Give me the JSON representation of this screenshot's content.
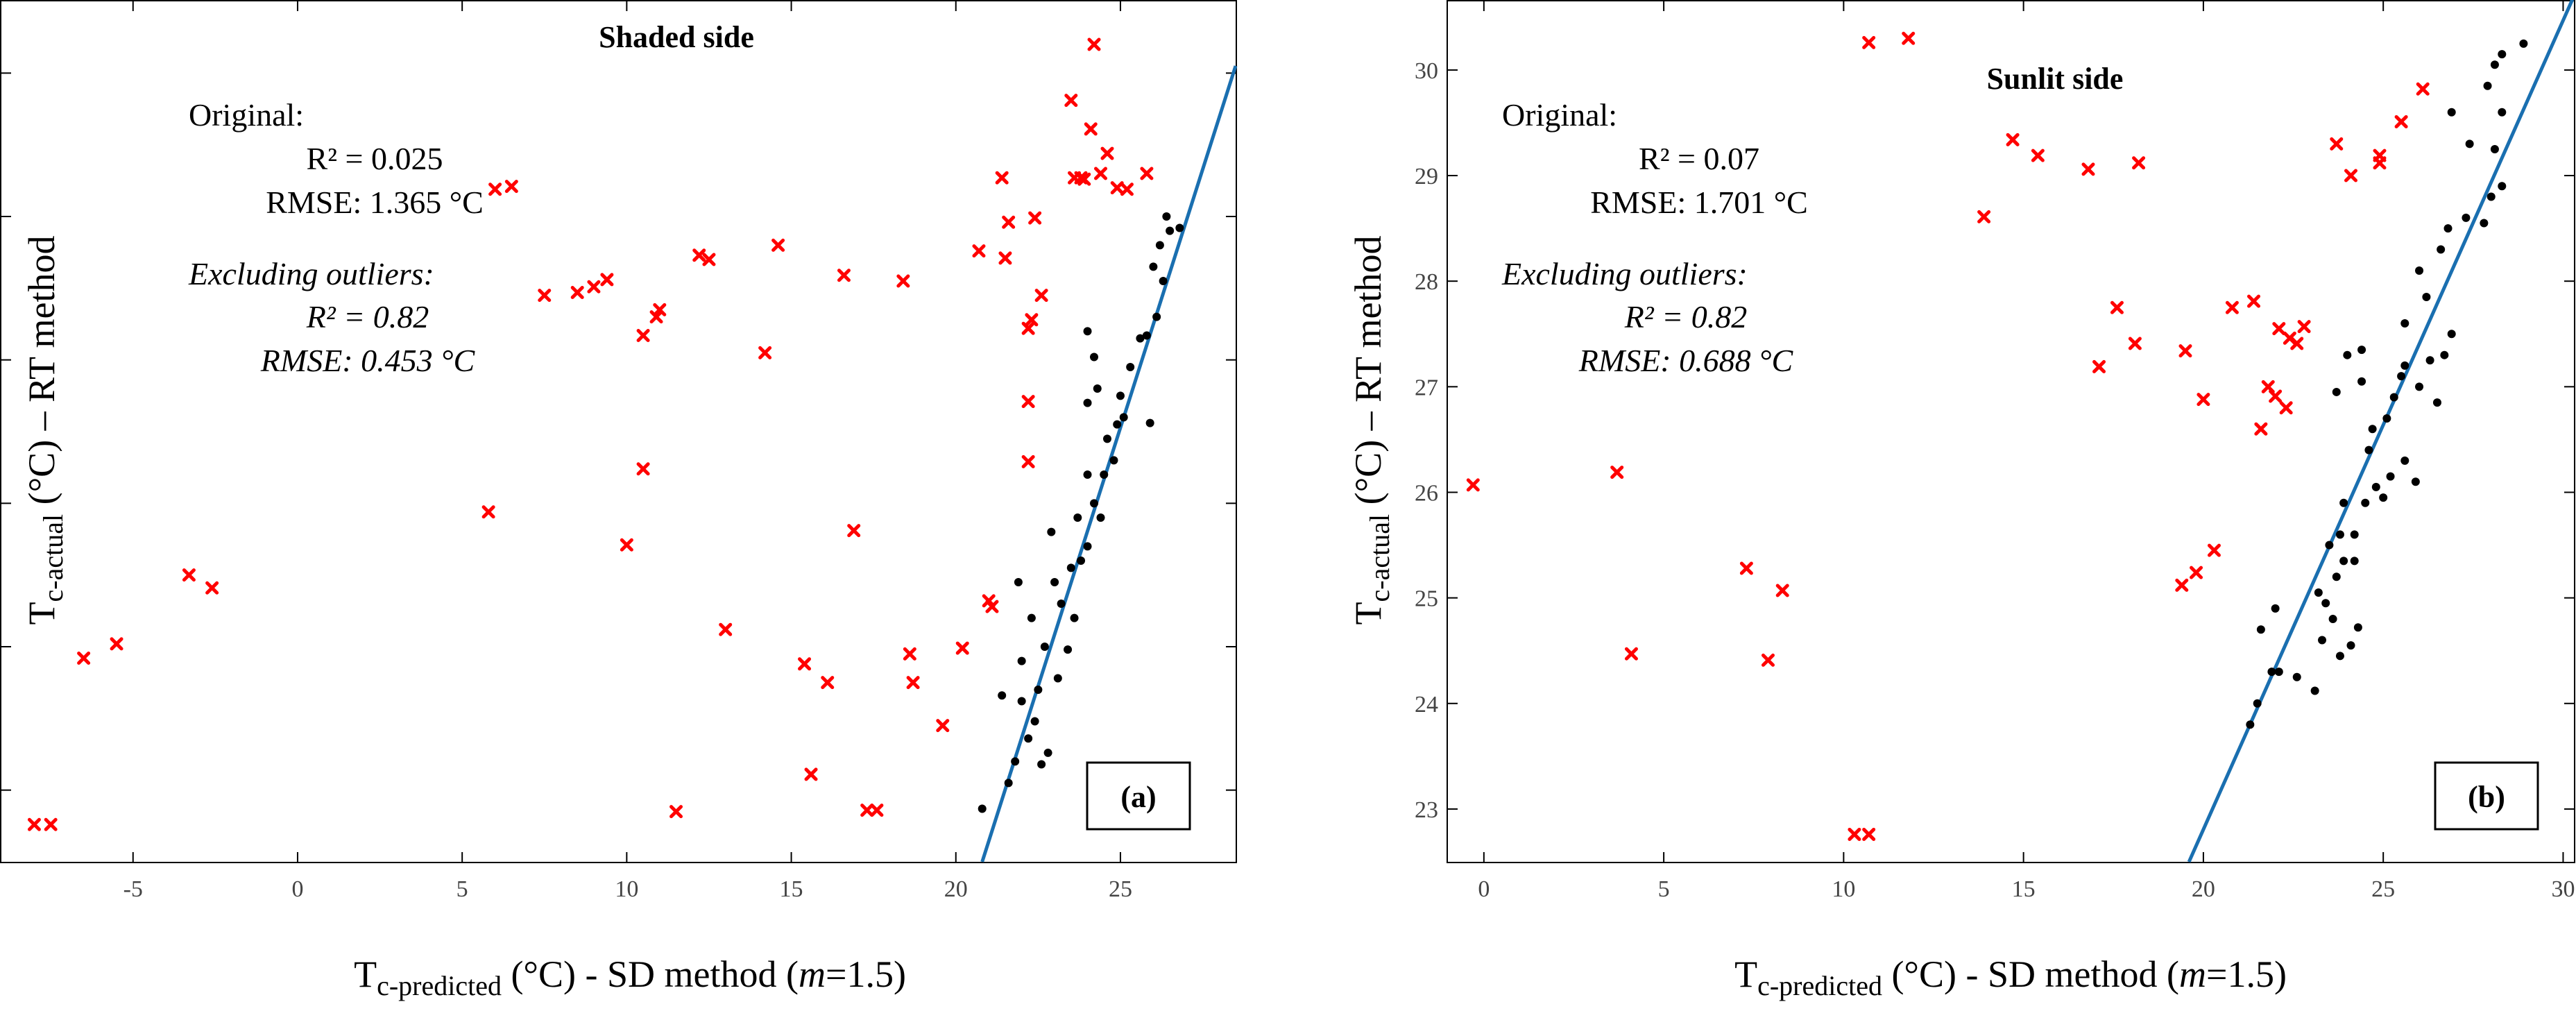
{
  "chart_data": [
    {
      "type": "scatter",
      "title": "Shaded side",
      "panel_tag": "(a)",
      "xlabel": {
        "main": "T",
        "sub": "c-predicted",
        "rest": " (°C) - SD method (",
        "m": "m",
        "tail": "=1.5)"
      },
      "ylabel": {
        "main": "T",
        "sub": "c-actual",
        "rest": " (°C) – RT method"
      },
      "xlim": [
        -9,
        28.5
      ],
      "ylim": [
        22.5,
        28.5
      ],
      "xticks": [
        -5,
        0,
        5,
        10,
        15,
        20,
        25
      ],
      "yticks": [
        23,
        24,
        25,
        26,
        27,
        28
      ],
      "stats": {
        "original_label": "Original:",
        "original_r2": "R² = 0.025",
        "original_rmse": "RMSE: 1.365 °C",
        "excl_label": "Excluding outliers:",
        "excl_r2": "R² = 0.82",
        "excl_rmse": "RMSE: 0.453 °C"
      },
      "fit_line": {
        "x": [
          20.8,
          28.5
        ],
        "y": [
          22.5,
          28.05
        ],
        "color": "#1a6fb0"
      },
      "series": [
        {
          "marker": "x",
          "color": "#ff0000",
          "points": [
            [
              -8.0,
              22.76
            ],
            [
              -7.5,
              22.76
            ],
            [
              -6.5,
              23.92
            ],
            [
              -5.5,
              24.02
            ],
            [
              -3.3,
              24.5
            ],
            [
              -2.6,
              24.41
            ],
            [
              5.8,
              24.94
            ],
            [
              6.0,
              27.19
            ],
            [
              6.5,
              27.21
            ],
            [
              7.5,
              26.45
            ],
            [
              8.5,
              26.47
            ],
            [
              9.0,
              26.51
            ],
            [
              9.4,
              26.56
            ],
            [
              10.0,
              24.71
            ],
            [
              10.5,
              25.24
            ],
            [
              10.5,
              26.17
            ],
            [
              10.9,
              26.3
            ],
            [
              11.0,
              26.35
            ],
            [
              11.5,
              22.85
            ],
            [
              12.2,
              26.73
            ],
            [
              12.5,
              26.7
            ],
            [
              13.0,
              24.12
            ],
            [
              14.2,
              26.05
            ],
            [
              14.6,
              26.8
            ],
            [
              15.4,
              23.88
            ],
            [
              15.6,
              23.11
            ],
            [
              16.1,
              23.75
            ],
            [
              16.6,
              26.59
            ],
            [
              16.9,
              24.81
            ],
            [
              17.3,
              22.86
            ],
            [
              17.6,
              22.86
            ],
            [
              18.4,
              26.55
            ],
            [
              18.6,
              23.95
            ],
            [
              18.7,
              23.75
            ],
            [
              19.6,
              23.45
            ],
            [
              20.2,
              23.99
            ],
            [
              20.7,
              26.76
            ],
            [
              21.0,
              24.32
            ],
            [
              21.1,
              24.28
            ],
            [
              21.4,
              27.27
            ],
            [
              21.5,
              26.71
            ],
            [
              21.6,
              26.96
            ],
            [
              22.2,
              25.71
            ],
            [
              22.2,
              25.29
            ],
            [
              22.2,
              26.22
            ],
            [
              22.3,
              26.28
            ],
            [
              22.4,
              26.99
            ],
            [
              22.6,
              26.45
            ],
            [
              23.5,
              27.81
            ],
            [
              23.6,
              27.27
            ],
            [
              23.8,
              27.27
            ],
            [
              23.9,
              27.26
            ],
            [
              24.1,
              27.61
            ],
            [
              24.2,
              28.2
            ],
            [
              24.4,
              27.3
            ],
            [
              24.6,
              27.44
            ],
            [
              24.9,
              27.2
            ],
            [
              25.2,
              27.19
            ],
            [
              25.8,
              27.3
            ]
          ]
        },
        {
          "marker": "dot",
          "color": "#000000",
          "points": [
            [
              20.8,
              22.87
            ],
            [
              21.6,
              23.05
            ],
            [
              21.8,
              23.2
            ],
            [
              22.2,
              23.36
            ],
            [
              22.6,
              23.18
            ],
            [
              22.8,
              23.26
            ],
            [
              21.4,
              23.66
            ],
            [
              22.0,
              23.62
            ],
            [
              22.4,
              23.48
            ],
            [
              22.0,
              23.9
            ],
            [
              22.5,
              23.7
            ],
            [
              23.1,
              23.78
            ],
            [
              23.4,
              23.98
            ],
            [
              21.9,
              24.45
            ],
            [
              22.3,
              24.2
            ],
            [
              22.7,
              24.0
            ],
            [
              23.0,
              24.45
            ],
            [
              23.2,
              24.3
            ],
            [
              23.5,
              24.55
            ],
            [
              23.8,
              24.6
            ],
            [
              24.0,
              24.7
            ],
            [
              23.6,
              24.2
            ],
            [
              22.9,
              24.8
            ],
            [
              23.7,
              24.9
            ],
            [
              24.2,
              25.0
            ],
            [
              24.0,
              25.2
            ],
            [
              24.5,
              25.2
            ],
            [
              24.4,
              24.9
            ],
            [
              24.6,
              25.45
            ],
            [
              24.8,
              25.3
            ],
            [
              24.9,
              25.55
            ],
            [
              25.1,
              25.6
            ],
            [
              24.3,
              25.8
            ],
            [
              24.0,
              25.7
            ],
            [
              24.2,
              26.02
            ],
            [
              24.0,
              26.2
            ],
            [
              25.0,
              25.75
            ],
            [
              25.3,
              25.95
            ],
            [
              25.6,
              26.15
            ],
            [
              25.9,
              25.56
            ],
            [
              25.8,
              26.17
            ],
            [
              26.1,
              26.3
            ],
            [
              26.3,
              26.55
            ],
            [
              26.0,
              26.65
            ],
            [
              26.2,
              26.8
            ],
            [
              26.5,
              26.9
            ],
            [
              26.8,
              26.92
            ],
            [
              26.4,
              27.0
            ]
          ]
        }
      ]
    },
    {
      "type": "scatter",
      "title": "Sunlit side",
      "panel_tag": "(b)",
      "xlabel": {
        "main": "T",
        "sub": "c-predicted",
        "rest": " (°C) - SD method (",
        "m": "m",
        "tail": "=1.5)"
      },
      "ylabel": {
        "main": "T",
        "sub": "c-actual",
        "rest": " (°C) – RT method"
      },
      "xlim": [
        -1,
        30.3
      ],
      "ylim": [
        22.5,
        30.65
      ],
      "xticks": [
        0,
        5,
        10,
        15,
        20,
        25,
        30
      ],
      "yticks": [
        23,
        24,
        25,
        26,
        27,
        28,
        29,
        30
      ],
      "stats": {
        "original_label": "Original:",
        "original_r2": "R² = 0.07",
        "original_rmse": "RMSE: 1.701 °C",
        "excl_label": "Excluding outliers:",
        "excl_r2": "R² = 0.82",
        "excl_rmse": "RMSE: 0.688 °C"
      },
      "fit_line": {
        "x": [
          19.6,
          30.3
        ],
        "y": [
          22.5,
          30.7
        ],
        "color": "#1a6fb0"
      },
      "series": [
        {
          "marker": "x",
          "color": "#ff0000",
          "points": [
            [
              -0.3,
              26.07
            ],
            [
              3.7,
              26.19
            ],
            [
              4.1,
              24.47
            ],
            [
              7.3,
              25.28
            ],
            [
              7.9,
              24.41
            ],
            [
              8.3,
              25.07
            ],
            [
              10.3,
              22.76
            ],
            [
              10.7,
              22.76
            ],
            [
              10.7,
              30.26
            ],
            [
              11.8,
              30.3
            ],
            [
              13.9,
              28.61
            ],
            [
              14.7,
              29.34
            ],
            [
              15.4,
              29.19
            ],
            [
              16.8,
              29.06
            ],
            [
              17.1,
              27.19
            ],
            [
              17.6,
              27.75
            ],
            [
              18.1,
              27.41
            ],
            [
              18.2,
              29.12
            ],
            [
              19.4,
              25.12
            ],
            [
              19.5,
              27.34
            ],
            [
              19.8,
              25.24
            ],
            [
              20.0,
              26.88
            ],
            [
              20.3,
              25.45
            ],
            [
              20.8,
              27.75
            ],
            [
              21.4,
              27.81
            ],
            [
              21.6,
              26.6
            ],
            [
              21.8,
              27.0
            ],
            [
              22.0,
              26.91
            ],
            [
              22.1,
              27.55
            ],
            [
              22.3,
              26.8
            ],
            [
              22.4,
              27.46
            ],
            [
              22.6,
              27.41
            ],
            [
              22.8,
              27.57
            ],
            [
              23.7,
              29.3
            ],
            [
              24.1,
              29.0
            ],
            [
              24.9,
              29.12
            ],
            [
              24.9,
              29.19
            ],
            [
              25.5,
              29.51
            ],
            [
              26.1,
              29.82
            ]
          ]
        },
        {
          "marker": "dot",
          "color": "#000000",
          "points": [
            [
              21.3,
              23.8
            ],
            [
              21.5,
              24.0
            ],
            [
              21.9,
              24.3
            ],
            [
              22.1,
              24.3
            ],
            [
              22.6,
              24.25
            ],
            [
              23.1,
              24.12
            ],
            [
              23.3,
              24.6
            ],
            [
              23.6,
              24.8
            ],
            [
              23.8,
              24.45
            ],
            [
              24.1,
              24.55
            ],
            [
              24.3,
              24.72
            ],
            [
              21.6,
              24.7
            ],
            [
              22.0,
              24.9
            ],
            [
              23.2,
              25.05
            ],
            [
              23.4,
              24.95
            ],
            [
              23.7,
              25.2
            ],
            [
              23.9,
              25.35
            ],
            [
              24.2,
              25.35
            ],
            [
              23.5,
              25.5
            ],
            [
              23.8,
              25.6
            ],
            [
              23.9,
              25.9
            ],
            [
              24.2,
              25.6
            ],
            [
              24.5,
              25.9
            ],
            [
              24.8,
              26.05
            ],
            [
              25.0,
              25.95
            ],
            [
              25.2,
              26.15
            ],
            [
              25.6,
              26.3
            ],
            [
              25.9,
              26.1
            ],
            [
              24.6,
              26.4
            ],
            [
              24.7,
              26.6
            ],
            [
              25.1,
              26.7
            ],
            [
              25.3,
              26.9
            ],
            [
              25.5,
              27.1
            ],
            [
              23.7,
              26.95
            ],
            [
              24.0,
              27.3
            ],
            [
              24.4,
              27.35
            ],
            [
              25.6,
              27.2
            ],
            [
              26.0,
              27.0
            ],
            [
              26.3,
              27.25
            ],
            [
              26.7,
              27.3
            ],
            [
              26.9,
              27.5
            ],
            [
              26.2,
              27.85
            ],
            [
              26.6,
              28.3
            ],
            [
              26.8,
              28.5
            ],
            [
              27.3,
              28.6
            ],
            [
              27.8,
              28.55
            ],
            [
              28.0,
              28.8
            ],
            [
              28.3,
              28.9
            ],
            [
              28.1,
              29.25
            ],
            [
              28.3,
              29.6
            ],
            [
              27.9,
              29.85
            ],
            [
              28.1,
              30.05
            ],
            [
              28.3,
              30.15
            ],
            [
              28.9,
              30.25
            ],
            [
              26.9,
              29.6
            ],
            [
              27.4,
              29.3
            ],
            [
              25.6,
              27.6
            ],
            [
              26.5,
              26.85
            ],
            [
              26.0,
              28.1
            ],
            [
              24.4,
              27.05
            ]
          ]
        }
      ]
    }
  ]
}
